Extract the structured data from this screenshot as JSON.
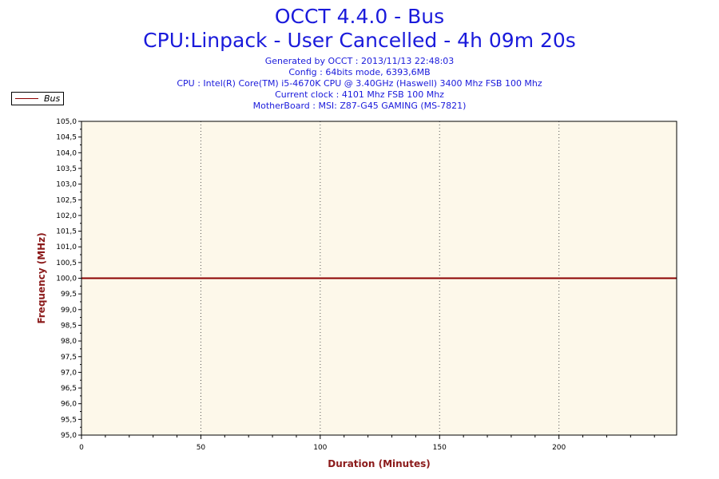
{
  "header": {
    "title": "OCCT 4.4.0 - Bus",
    "subtitle": "CPU:Linpack - User Cancelled - 4h 09m 20s",
    "info_lines": [
      "Generated by OCCT : 2013/11/13 22:48:03",
      "Config : 64bits mode, 6393,6MB",
      "CPU : Intel(R) Core(TM) i5-4670K CPU @ 3.40GHz (Haswell) 3400 Mhz FSB 100 Mhz",
      "Current clock : 4101 Mhz FSB 100 Mhz",
      "MotherBoard : MSI: Z87-G45 GAMING (MS-7821)"
    ]
  },
  "legend": {
    "label": "Bus",
    "placement": "top-left"
  },
  "colors": {
    "title": "#1a1adb",
    "plot_background": "#fdf8ea",
    "series": "#8b0000",
    "axis_title": "#8b1a1a"
  },
  "chart_data": {
    "type": "line",
    "xlabel": "Duration (Minutes)",
    "ylabel": "Frequency (MHz)",
    "xlim": [
      0,
      249.3
    ],
    "ylim": [
      95.0,
      105.0
    ],
    "x_ticks": [
      0,
      50,
      100,
      150,
      200
    ],
    "x_tick_labels": [
      "0",
      "50",
      "100",
      "150",
      "200"
    ],
    "y_ticks": [
      95.0,
      95.5,
      96.0,
      96.5,
      97.0,
      97.5,
      98.0,
      98.5,
      99.0,
      99.5,
      100.0,
      100.5,
      101.0,
      101.5,
      102.0,
      102.5,
      103.0,
      103.5,
      104.0,
      104.5,
      105.0
    ],
    "y_tick_labels": [
      "95,0",
      "95,5",
      "96,0",
      "96,5",
      "97,0",
      "97,5",
      "98,0",
      "98,5",
      "99,0",
      "99,5",
      "100,0",
      "100,5",
      "101,0",
      "101,5",
      "102,0",
      "102,5",
      "103,0",
      "103,5",
      "104,0",
      "104,5",
      "105,0"
    ],
    "vertical_gridlines_at": [
      50,
      100,
      150,
      200
    ],
    "grid": "vertical dotted",
    "series": [
      {
        "name": "Bus",
        "color": "#8b0000",
        "x": [
          0,
          249.3
        ],
        "y": [
          100.0,
          100.0
        ]
      }
    ]
  }
}
